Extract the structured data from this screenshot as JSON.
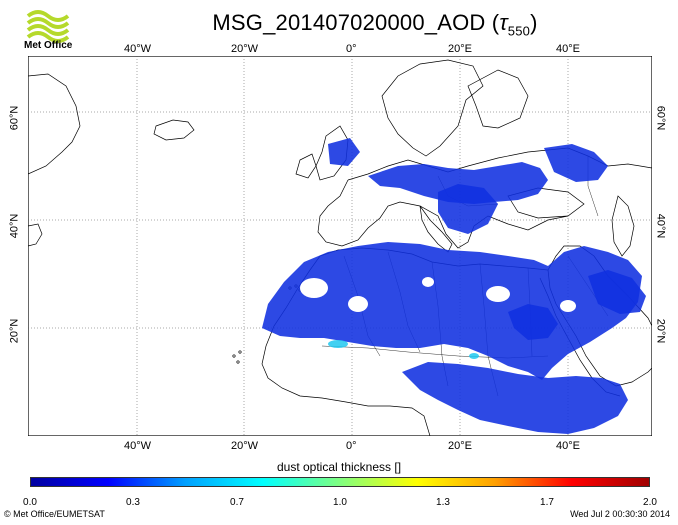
{
  "header": {
    "title_prefix": "MSG_201407020000_AOD (",
    "title_tau": "τ",
    "title_sub": "550",
    "title_suffix": ")"
  },
  "logo": {
    "text": "Met Office"
  },
  "map": {
    "longitude_labels": [
      "40°W",
      "20°W",
      "0°",
      "20°E",
      "40°E"
    ],
    "latitude_labels": [
      "60°N",
      "40°N",
      "20°N"
    ]
  },
  "colorbar": {
    "label": "dust optical thickness []",
    "ticks": [
      "0.0",
      "0.3",
      "0.7",
      "1.0",
      "1.3",
      "1.7",
      "2.0"
    ],
    "colors": [
      "#0000a0",
      "#0000ff",
      "#00a0ff",
      "#00ffff",
      "#80ff80",
      "#ffff00",
      "#ffa000",
      "#ff0000",
      "#a00000"
    ]
  },
  "footer": {
    "left": "© Met Office/EUMETSAT",
    "right": "Wed Jul  2 00:30:30 2014"
  }
}
